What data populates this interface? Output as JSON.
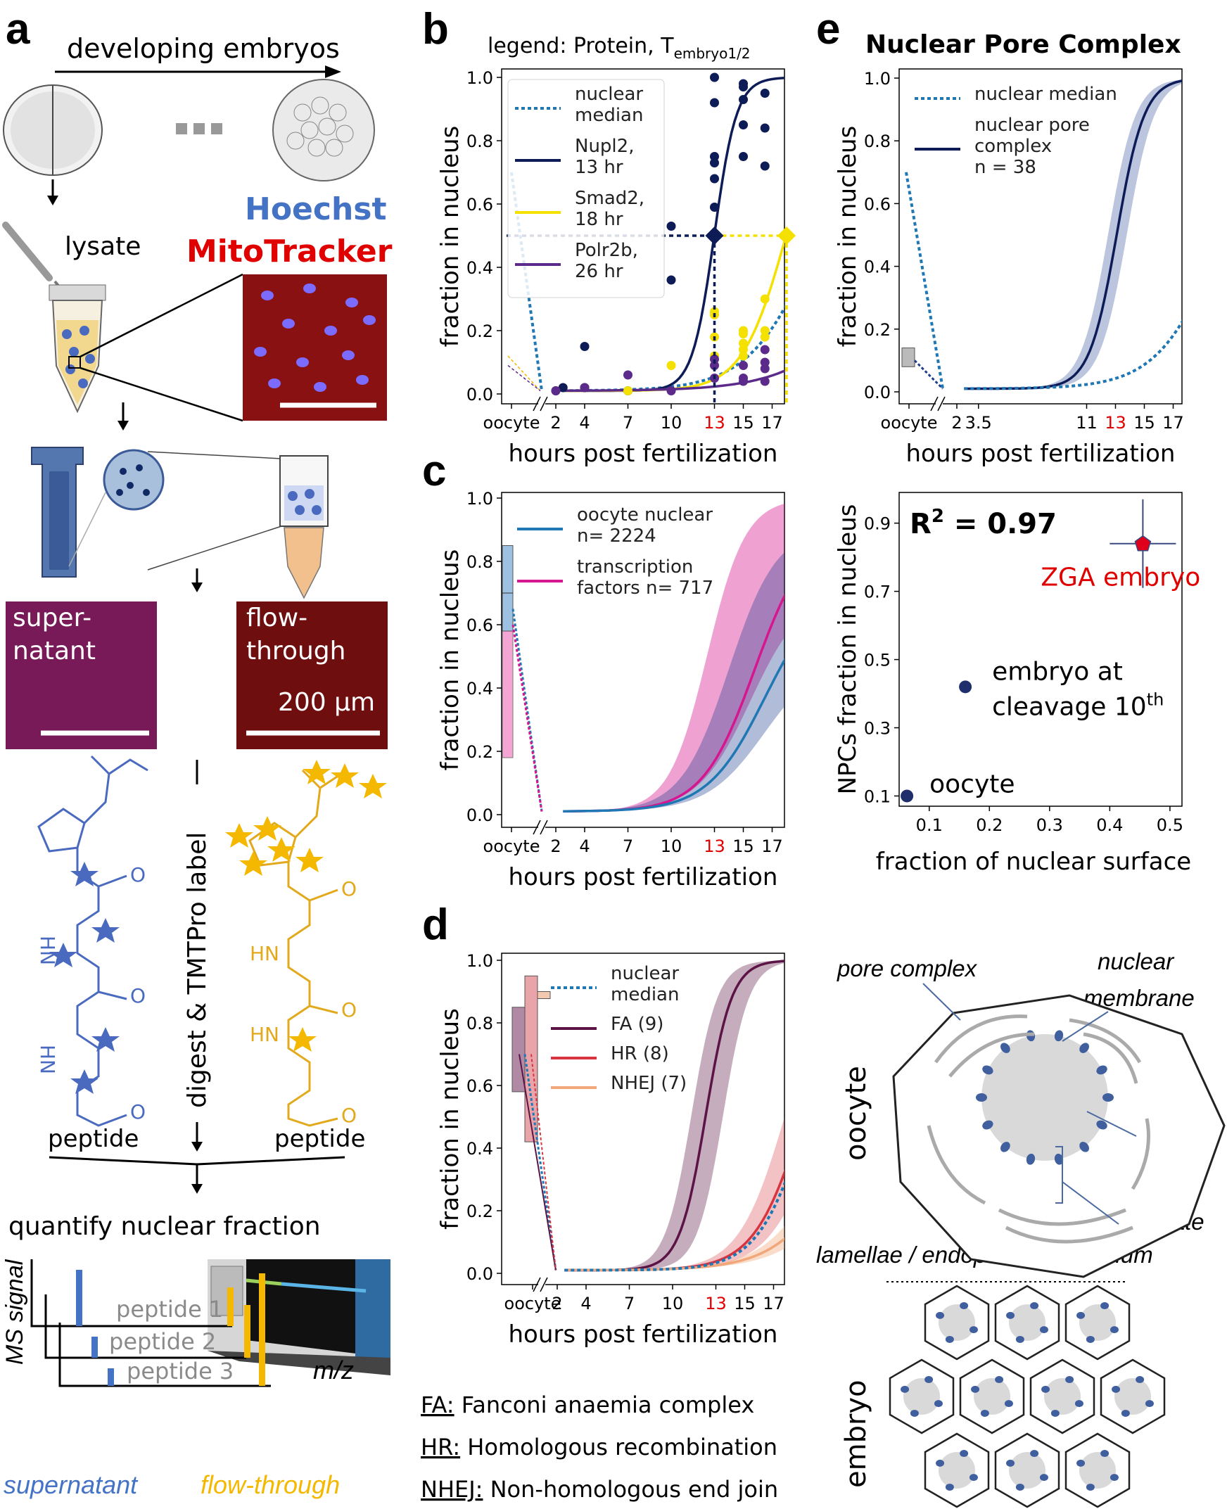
{
  "panel_labels": {
    "a": "a",
    "b": "b",
    "c": "c",
    "d": "d",
    "e": "e"
  },
  "panel_a": {
    "top_label": "developing embryos",
    "lysate": "lysate",
    "stain1": "Hoechst",
    "stain2": "MitoTracker",
    "supernatant_label": "super-\nnatant",
    "flowthrough_label": "flow-\nthrough",
    "scalebar": "200 µm",
    "digest_label": "digest & TMTPro label",
    "peptide_left": "peptide",
    "peptide_right": "peptide",
    "quantify": "quantify nuclear fraction",
    "ms_ylabel": "MS signal",
    "mz_label": "m/z",
    "peptides": [
      "peptide 1",
      "peptide 2",
      "peptide 3"
    ],
    "bottom_left": "supernatant",
    "bottom_right": "flow-through",
    "colors": {
      "blue": "#4472c4",
      "yellow": "#f5b800",
      "hoechst": "#4472c4",
      "mito": "#e00000"
    }
  },
  "panel_b_title": "legend: Protein, T",
  "panel_b_title_sub": "embryo1/2",
  "panel_e_title": "Nuclear Pore Complex",
  "panel_e_lower": {
    "r2": "R",
    "r2_sup": "2",
    "r2_value": " = 0.97"
  },
  "panel_d_footnote": [
    {
      "abbr": "FA:",
      "text": " Fanconi anaemia complex"
    },
    {
      "abbr": "HR:",
      "text": " Homologous recombination"
    },
    {
      "abbr": "NHEJ:",
      "text": " Non-homologous end join"
    }
  ],
  "panel_e_diagram": {
    "pore_complex": "pore complex",
    "nuclear_membrane_1": "nuclear",
    "nuclear_membrane_2": "membrane",
    "nuclear_pore_1": "nuclear",
    "nuclear_pore_2": "pore",
    "annulate": "annulate",
    "lamellae": "lamellae / endoplasmic reticulum",
    "oocyte": "oocyte",
    "embryo": "embryo"
  },
  "chart_data": [
    {
      "id": "b",
      "type": "line",
      "xlabel": "hours post fertilization",
      "ylabel": "fraction in nucleus",
      "xticks": [
        "oocyte",
        "2",
        "4",
        "7",
        "10",
        "13",
        "15",
        "17"
      ],
      "highlight_tick": "13",
      "yticks": [
        "0.0",
        "0.2",
        "0.4",
        "0.6",
        "0.8",
        "1.0"
      ],
      "ylim": [
        0,
        1
      ],
      "series": [
        {
          "name": "nuclear\nmedian",
          "style": "dotted",
          "color": "#1f77b4"
        },
        {
          "name": "Nupl2,\n13 hr",
          "color": "#0d1b57",
          "half_time": 13
        },
        {
          "name": "Smad2,\n18 hr",
          "color": "#f5e100",
          "half_time": 18
        },
        {
          "name": "Polr2b,\n26 hr",
          "color": "#5b2a8a",
          "half_time": 26
        }
      ],
      "markers": [
        {
          "series": "Nupl2",
          "x": 13,
          "y": 0.5
        },
        {
          "series": "Smad2",
          "x": 18,
          "y": 0.5
        }
      ]
    },
    {
      "id": "c",
      "type": "area",
      "xlabel": "hours post fertilization",
      "ylabel": "fraction in nucleus",
      "xticks": [
        "oocyte",
        "2",
        "4",
        "7",
        "10",
        "13",
        "15",
        "17"
      ],
      "yticks": [
        "0.0",
        "0.2",
        "0.4",
        "0.6",
        "0.8",
        "1.0"
      ],
      "ylim": [
        0,
        1
      ],
      "series": [
        {
          "name": "oocyte nuclear\nn= 2224",
          "color": "#1f77b4",
          "end_value": 0.61
        },
        {
          "name": "transcription\nfactors n= 717",
          "color": "#d6168f",
          "end_value": 0.82
        }
      ]
    },
    {
      "id": "d",
      "type": "area",
      "xlabel": "hours post fertilization",
      "ylabel": "fraction in nucleus",
      "xticks": [
        "oocyte",
        "2",
        "4",
        "7",
        "10",
        "13",
        "15",
        "17"
      ],
      "yticks": [
        "0.0",
        "0.2",
        "0.4",
        "0.6",
        "0.8",
        "1.0"
      ],
      "ylim": [
        0,
        1
      ],
      "series": [
        {
          "name": "nuclear\nmedian",
          "style": "dotted",
          "color": "#1f77b4"
        },
        {
          "name": "FA (9)",
          "color": "#5b1445"
        },
        {
          "name": "HR (8)",
          "color": "#d8343f"
        },
        {
          "name": "NHEJ (7)",
          "color": "#f2a77a"
        }
      ]
    },
    {
      "id": "e-top",
      "type": "line",
      "xlabel": "hours post fertilization",
      "ylabel": "fraction in nucleus",
      "xticks": [
        "oocyte",
        "2",
        "3.5",
        "11",
        "13",
        "15",
        "17"
      ],
      "yticks": [
        "0.0",
        "0.2",
        "0.4",
        "0.6",
        "0.8",
        "1.0"
      ],
      "ylim": [
        0,
        1
      ],
      "series": [
        {
          "name": "nuclear median",
          "style": "dotted",
          "color": "#1f77b4"
        },
        {
          "name": "nuclear pore\ncomplex\nn = 38",
          "color": "#0d1b57"
        }
      ]
    },
    {
      "id": "e-bottom",
      "type": "scatter",
      "xlabel": "fraction of nuclear surface",
      "ylabel": "NPCs fraction in nucleus",
      "xticks": [
        "0.1",
        "0.2",
        "0.3",
        "0.4",
        "0.5"
      ],
      "yticks": [
        "0.1",
        "0.3",
        "0.5",
        "0.7",
        "0.9"
      ],
      "xlim": [
        0.05,
        0.52
      ],
      "ylim": [
        0.07,
        0.99
      ],
      "points": [
        {
          "label": "ZGA embryo",
          "x": 0.455,
          "y": 0.84,
          "xerr": 0.055,
          "yerr": 0.13,
          "color": "#e0001b"
        },
        {
          "label": "embryo at\ncleavage 10",
          "label_sup": "th",
          "x": 0.16,
          "y": 0.42,
          "xerr": 0.01,
          "yerr": 0.01,
          "color": "#1f2f6b"
        },
        {
          "label": "oocyte",
          "x": 0.063,
          "y": 0.1,
          "color": "#1f2f6b"
        }
      ]
    }
  ]
}
